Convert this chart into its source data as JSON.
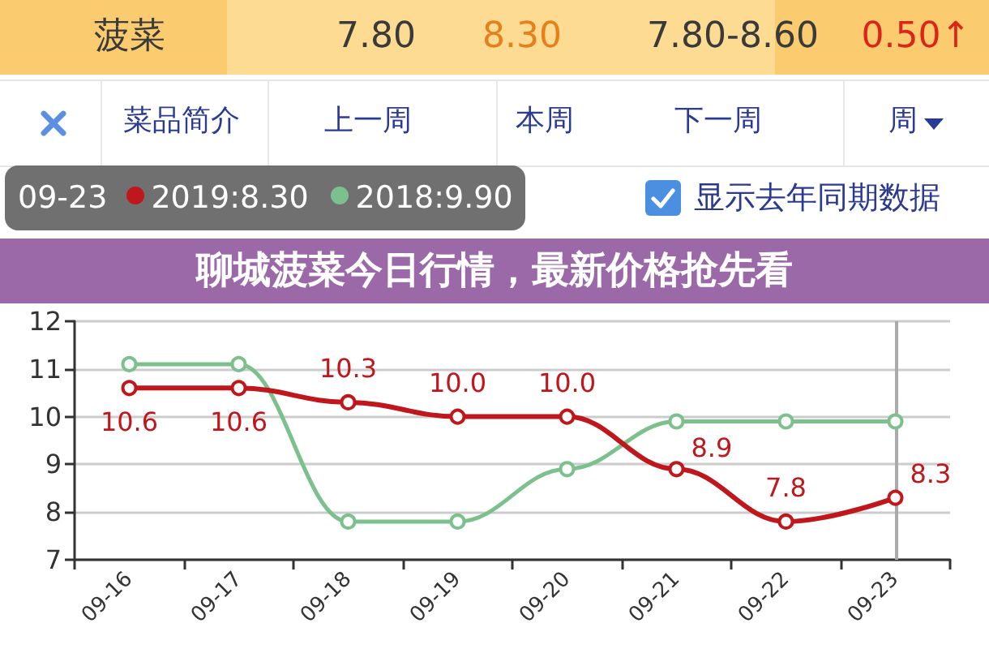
{
  "chart_data": {
    "type": "line",
    "title": "聊城菠菜今日行情，最新价格抢先看",
    "categories": [
      "09-16",
      "09-17",
      "09-18",
      "09-19",
      "09-20",
      "09-21",
      "09-22",
      "09-23"
    ],
    "series": [
      {
        "name": "2019",
        "color": "#c0171c",
        "values": [
          10.6,
          10.6,
          10.3,
          10.0,
          10.0,
          8.9,
          7.8,
          8.3
        ],
        "value_labels": [
          "10.6",
          "10.6",
          "10.3",
          "10.0",
          "10.0",
          "8.9",
          "7.8",
          "8.3"
        ]
      },
      {
        "name": "2018",
        "color": "#7cc18d",
        "values": [
          11.1,
          11.1,
          7.8,
          7.8,
          8.9,
          9.9,
          9.9,
          9.9
        ]
      }
    ],
    "ylim": [
      7,
      12
    ],
    "yticks": [
      7,
      8,
      9,
      10,
      11,
      12
    ],
    "grid": "y",
    "legend": "top left",
    "marker": "circle",
    "line_style": "solid",
    "ref_lines": [
      {
        "axis": "x",
        "value": "09-23",
        "color": "#aaaaaa"
      }
    ],
    "annotations": [
      "菠菜",
      "7.80",
      "8.30",
      "7.80-8.60",
      "0.50↑",
      "菜品简介",
      "上一周",
      "本周",
      "下一周",
      "周",
      "显示去年同期数据",
      "09-23",
      ":8.30",
      ":9.90"
    ]
  }
}
